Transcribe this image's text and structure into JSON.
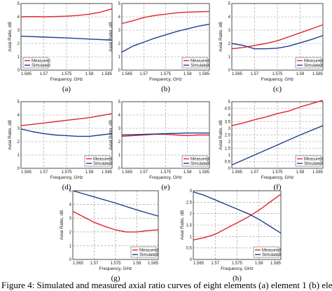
{
  "colors": {
    "measured": "#e0252b",
    "simulated": "#1f3f8c",
    "grid": "#9a9a9a"
  },
  "caption": "Figure 4: Simulated and measured axial ratio curves of eight elements (a) element 1 (b) ele",
  "chart_data": [
    {
      "type": "line",
      "panel_label": "(a)",
      "xlabel": "Frequency, GHz",
      "ylabel": "Axial Ratio, dB",
      "xlim": [
        1.565,
        1.585
      ],
      "ylim": [
        0,
        5
      ],
      "xticks": [
        "1.565",
        "1.57",
        "1.575",
        "1.58",
        "1.585"
      ],
      "yticks": [
        "0",
        "1",
        "2",
        "3",
        "4",
        "5"
      ],
      "legend": "bottom-left",
      "grid": true,
      "series": [
        {
          "name": "Measured",
          "color": "#e0252b",
          "x": [
            1.565,
            1.5675,
            1.57,
            1.5725,
            1.575,
            1.5775,
            1.58,
            1.5825,
            1.585
          ],
          "y": [
            4.0,
            4.02,
            4.0,
            4.02,
            4.05,
            4.1,
            4.2,
            4.35,
            4.6
          ]
        },
        {
          "name": "Simulated",
          "color": "#1f3f8c",
          "x": [
            1.565,
            1.57,
            1.575,
            1.58,
            1.585
          ],
          "y": [
            2.55,
            2.48,
            2.42,
            2.33,
            2.25
          ]
        }
      ]
    },
    {
      "type": "line",
      "panel_label": "(b)",
      "xlabel": "Frequency, GHz",
      "ylabel": "Axial Ratio, dB",
      "xlim": [
        1.565,
        1.585
      ],
      "ylim": [
        0,
        5
      ],
      "xticks": [
        "1.565",
        "1.57",
        "1.575",
        "1.58",
        "1.585"
      ],
      "yticks": [
        "0",
        "1",
        "2",
        "3",
        "4",
        "5"
      ],
      "legend": "bottom-right",
      "grid": true,
      "series": [
        {
          "name": "Measured",
          "color": "#e0252b",
          "x": [
            1.565,
            1.5675,
            1.57,
            1.5725,
            1.575,
            1.5775,
            1.58,
            1.5825,
            1.585
          ],
          "y": [
            3.5,
            3.7,
            3.95,
            4.1,
            4.2,
            4.3,
            4.35,
            4.38,
            4.4
          ]
        },
        {
          "name": "Simulated",
          "color": "#1f3f8c",
          "x": [
            1.565,
            1.5675,
            1.57,
            1.5725,
            1.575,
            1.5775,
            1.58,
            1.5825,
            1.585
          ],
          "y": [
            1.35,
            1.8,
            2.1,
            2.4,
            2.65,
            2.9,
            3.1,
            3.3,
            3.45
          ]
        }
      ]
    },
    {
      "type": "line",
      "panel_label": "(c)",
      "xlabel": "Frequency, GHz",
      "ylabel": "Axial Ratio, dB",
      "xlim": [
        1.565,
        1.585
      ],
      "ylim": [
        0,
        5
      ],
      "xticks": [
        "1.565",
        "1.57",
        "1.575",
        "1.58",
        "1.585"
      ],
      "yticks": [
        "0",
        "1",
        "2",
        "3",
        "4",
        "5"
      ],
      "legend": "bottom-right",
      "grid": true,
      "series": [
        {
          "name": "Measured",
          "color": "#e0252b",
          "x": [
            1.565,
            1.5675,
            1.57,
            1.5725,
            1.575,
            1.5775,
            1.58,
            1.5825,
            1.585
          ],
          "y": [
            1.6,
            1.7,
            1.85,
            2.0,
            2.2,
            2.5,
            2.8,
            3.1,
            3.4
          ]
        },
        {
          "name": "Simulated",
          "color": "#1f3f8c",
          "x": [
            1.565,
            1.5675,
            1.57,
            1.5725,
            1.575,
            1.5775,
            1.58,
            1.5825,
            1.585
          ],
          "y": [
            2.0,
            1.85,
            1.6,
            1.6,
            1.65,
            1.8,
            2.05,
            2.3,
            2.6
          ]
        }
      ]
    },
    {
      "type": "line",
      "panel_label": "(d)",
      "xlabel": "Frequency, GHz",
      "ylabel": "Axial Ratio, dB",
      "xlim": [
        1.565,
        1.585
      ],
      "ylim": [
        0,
        5
      ],
      "xticks": [
        "1.565",
        "1.57",
        "1.575",
        "1.58",
        "1.585"
      ],
      "yticks": [
        "0",
        "1",
        "2",
        "3",
        "4",
        "5"
      ],
      "legend": "bottom-right",
      "grid": true,
      "series": [
        {
          "name": "Measured",
          "color": "#e0252b",
          "x": [
            1.565,
            1.5675,
            1.57,
            1.5725,
            1.575,
            1.5775,
            1.58,
            1.5825,
            1.585
          ],
          "y": [
            3.2,
            3.3,
            3.4,
            3.5,
            3.6,
            3.7,
            3.8,
            3.95,
            4.1
          ]
        },
        {
          "name": "Simulated",
          "color": "#1f3f8c",
          "x": [
            1.565,
            1.5675,
            1.57,
            1.5725,
            1.575,
            1.5775,
            1.58,
            1.5825,
            1.585
          ],
          "y": [
            2.95,
            2.75,
            2.6,
            2.5,
            2.45,
            2.4,
            2.4,
            2.5,
            2.6
          ]
        }
      ]
    },
    {
      "type": "line",
      "panel_label": "(e)",
      "xlabel": "Frequency, GHz",
      "ylabel": "Axial Ratio, dB",
      "xlim": [
        1.565,
        1.585
      ],
      "ylim": [
        0,
        5
      ],
      "xticks": [
        "1.565",
        "1.57",
        "1.575",
        "1.58",
        "1.585"
      ],
      "yticks": [
        "0",
        "1",
        "2",
        "3",
        "4",
        "5"
      ],
      "legend": "bottom-right",
      "grid": true,
      "series": [
        {
          "name": "Measured",
          "color": "#e0252b",
          "x": [
            1.565,
            1.5675,
            1.57,
            1.5725,
            1.575,
            1.5775,
            1.58,
            1.5825,
            1.585
          ],
          "y": [
            2.4,
            2.45,
            2.5,
            2.55,
            2.55,
            2.5,
            2.45,
            2.5,
            2.5
          ]
        },
        {
          "name": "Simulated",
          "color": "#1f3f8c",
          "x": [
            1.565,
            1.57,
            1.575,
            1.58,
            1.585
          ],
          "y": [
            2.5,
            2.55,
            2.6,
            2.65,
            2.65
          ]
        }
      ]
    },
    {
      "type": "line",
      "panel_label": "(f)",
      "xlabel": "Frequency, GHz",
      "ylabel": "Axial Ratio, dB",
      "xlim": [
        1.565,
        1.585
      ],
      "ylim": [
        0,
        5
      ],
      "xticks": [
        "1.565",
        "1.57",
        "1.575",
        "1.58",
        "1.585"
      ],
      "yticks": [
        "0",
        "0.5",
        "1",
        "1.5",
        "2",
        "2.5",
        "3",
        "3.5",
        "4",
        "4.5",
        "5"
      ],
      "legend": "bottom-right",
      "grid": true,
      "series": [
        {
          "name": "Measured",
          "color": "#e0252b",
          "x": [
            1.565,
            1.5675,
            1.57,
            1.5725,
            1.575,
            1.5775,
            1.58,
            1.5825,
            1.585
          ],
          "y": [
            3.2,
            3.4,
            3.65,
            3.85,
            4.1,
            4.3,
            4.6,
            4.85,
            5.1
          ]
        },
        {
          "name": "Simulated",
          "color": "#1f3f8c",
          "x": [
            1.565,
            1.57,
            1.575,
            1.58,
            1.585
          ],
          "y": [
            0.25,
            1.0,
            1.75,
            2.5,
            3.2
          ]
        }
      ]
    },
    {
      "type": "line",
      "panel_label": "(g)",
      "xlabel": "Frequency, GHz",
      "ylabel": "Axial Ratio, dB",
      "xlim": [
        1.565,
        1.585
      ],
      "ylim": [
        0,
        5
      ],
      "xticks": [
        "1.565",
        "1.57",
        "1.575",
        "1.58",
        "1.585"
      ],
      "yticks": [
        "0",
        "1",
        "2",
        "3",
        "4",
        "5"
      ],
      "legend": "bottom-right",
      "grid": true,
      "series": [
        {
          "name": "Measured",
          "color": "#e0252b",
          "x": [
            1.565,
            1.5675,
            1.57,
            1.5725,
            1.575,
            1.5775,
            1.58,
            1.5825,
            1.585
          ],
          "y": [
            3.5,
            3.1,
            2.7,
            2.4,
            2.15,
            2.0,
            2.0,
            2.1,
            2.15
          ]
        },
        {
          "name": "Simulated",
          "color": "#1f3f8c",
          "x": [
            1.565,
            1.57,
            1.575,
            1.58,
            1.585
          ],
          "y": [
            5.0,
            4.55,
            4.1,
            3.6,
            3.15
          ]
        }
      ]
    },
    {
      "type": "line",
      "panel_label": "(h)",
      "xlabel": "Frequency, GHz",
      "ylabel": "Axial Ratio, dB",
      "xlim": [
        1.565,
        1.585
      ],
      "ylim": [
        0,
        3
      ],
      "xticks": [
        "1.565",
        "1.57",
        "1.575",
        "1.58",
        "1.585"
      ],
      "yticks": [
        "0",
        "0.5",
        "1",
        "1.5",
        "2",
        "2.5",
        "3"
      ],
      "legend": "bottom-right",
      "grid": true,
      "series": [
        {
          "name": "Measured",
          "color": "#e0252b",
          "x": [
            1.565,
            1.5675,
            1.57,
            1.5725,
            1.575,
            1.5775,
            1.58,
            1.5825,
            1.585
          ],
          "y": [
            0.85,
            0.95,
            1.1,
            1.35,
            1.6,
            1.85,
            2.15,
            2.5,
            2.85
          ]
        },
        {
          "name": "Simulated",
          "color": "#1f3f8c",
          "x": [
            1.565,
            1.5675,
            1.57,
            1.5725,
            1.575,
            1.5775,
            1.58,
            1.5825,
            1.585
          ],
          "y": [
            2.95,
            2.8,
            2.6,
            2.4,
            2.2,
            2.0,
            1.75,
            1.45,
            1.15
          ]
        }
      ]
    }
  ]
}
